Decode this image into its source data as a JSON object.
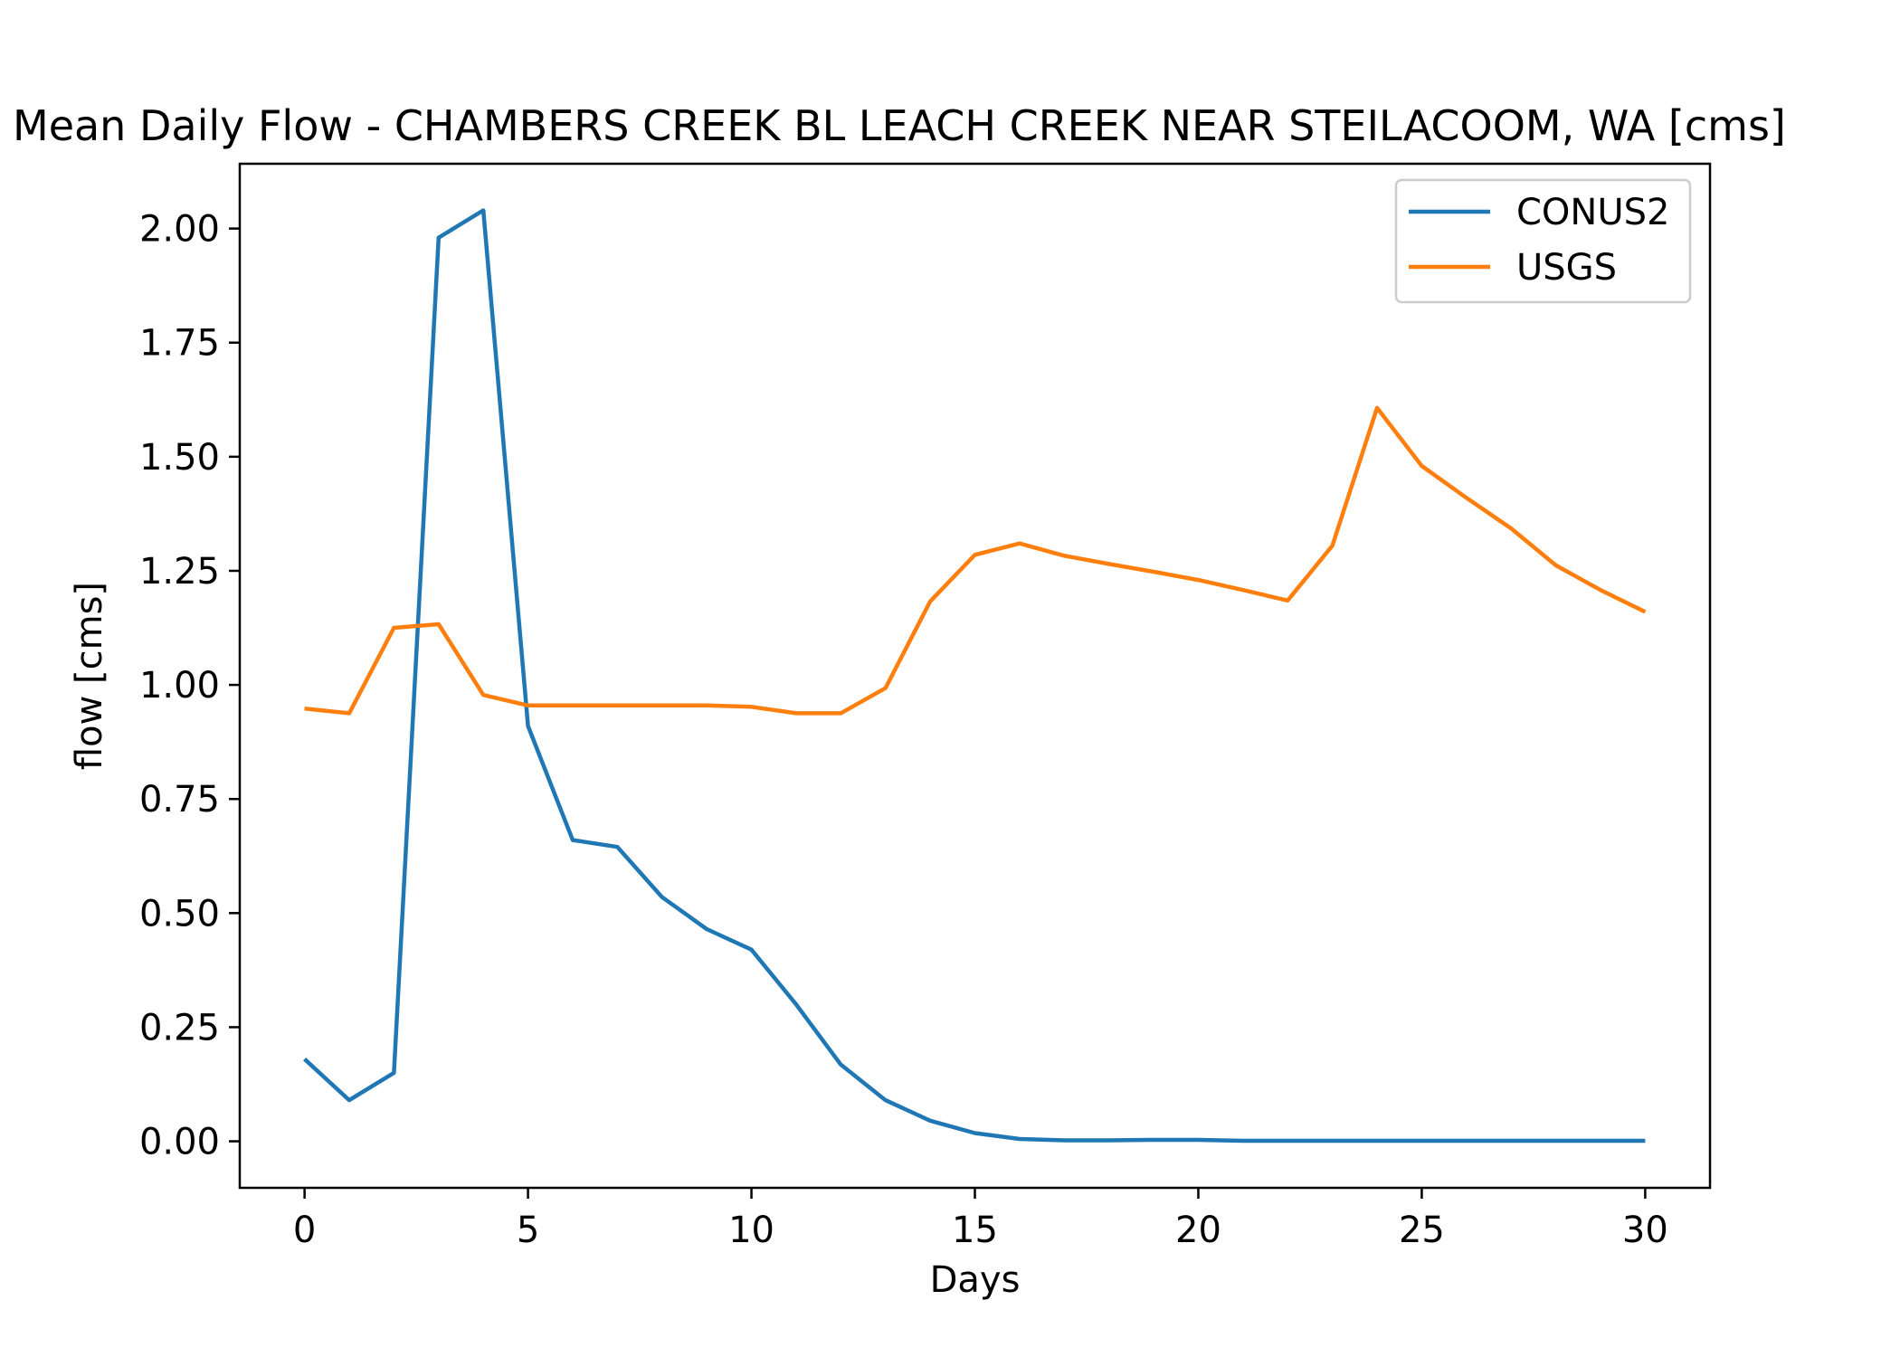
{
  "chart_data": {
    "type": "line",
    "title": "Mean Daily Flow - CHAMBERS CREEK BL LEACH CREEK NEAR STEILACOOM, WA [cms]",
    "xlabel": "Days",
    "ylabel": "flow [cms]",
    "xlim": [
      -1.45,
      31.45
    ],
    "ylim": [
      -0.102,
      2.142
    ],
    "x_ticks": [
      0,
      5,
      10,
      15,
      20,
      25,
      30
    ],
    "x_tick_labels": [
      "0",
      "5",
      "10",
      "15",
      "20",
      "25",
      "30"
    ],
    "y_ticks": [
      0,
      0.25,
      0.5,
      0.75,
      1.0,
      1.25,
      1.5,
      1.75,
      2.0
    ],
    "y_tick_labels": [
      "0.00",
      "0.25",
      "0.50",
      "0.75",
      "1.00",
      "1.25",
      "1.50",
      "1.75",
      "2.00"
    ],
    "grid": false,
    "legend_position": "top-right",
    "x": [
      0,
      1,
      2,
      3,
      4,
      5,
      6,
      7,
      8,
      9,
      10,
      11,
      12,
      13,
      14,
      15,
      16,
      17,
      18,
      19,
      20,
      21,
      22,
      23,
      24,
      25,
      26,
      27,
      28,
      29,
      30
    ],
    "series": [
      {
        "name": "CONUS2",
        "color": "#1f77b4",
        "values": [
          0.18,
          0.09,
          0.15,
          1.98,
          2.04,
          0.91,
          0.66,
          0.645,
          0.535,
          0.465,
          0.42,
          0.3,
          0.168,
          0.09,
          0.045,
          0.018,
          0.005,
          0.002,
          0.002,
          0.003,
          0.003,
          0.001,
          0.001,
          0.001,
          0.001,
          0.001,
          0.001,
          0.001,
          0.001,
          0.001,
          0.001
        ]
      },
      {
        "name": "USGS",
        "color": "#ff7f0e",
        "values": [
          0.948,
          0.938,
          1.125,
          1.133,
          0.978,
          0.955,
          0.955,
          0.955,
          0.955,
          0.955,
          0.952,
          0.938,
          0.938,
          0.993,
          1.183,
          1.285,
          1.31,
          1.283,
          1.265,
          1.248,
          1.23,
          1.208,
          1.185,
          1.305,
          1.607,
          1.48,
          1.41,
          1.343,
          1.262,
          1.208,
          1.16
        ]
      }
    ]
  }
}
